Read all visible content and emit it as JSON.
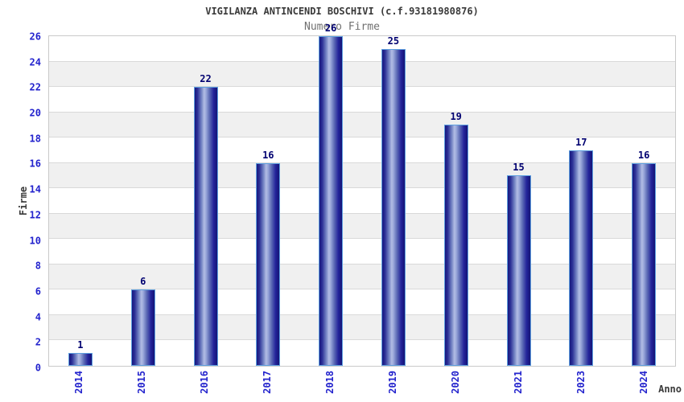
{
  "chart_data": {
    "type": "bar",
    "title": "VIGILANZA ANTINCENDI BOSCHIVI (c.f.93181980876)",
    "subtitle": "Numero Firme",
    "xlabel": "Anno",
    "ylabel": "Firme",
    "categories": [
      "2014",
      "2015",
      "2016",
      "2017",
      "2018",
      "2019",
      "2020",
      "2021",
      "2023",
      "2024"
    ],
    "values": [
      1,
      6,
      22,
      16,
      26,
      25,
      19,
      15,
      17,
      16
    ],
    "ylim": [
      0,
      26
    ],
    "ytick_step": 2,
    "grid": true,
    "band_step": 2,
    "legend_position": "none"
  },
  "colors": {
    "title_text": "#3a3a3a",
    "subtitle_text": "#707070",
    "axis_tick_text": "#2323cd",
    "bar_value_text": "#000070",
    "axis_title_text": "#3a3a3a",
    "band_gray": "#f0f0f0",
    "band_white": "#ffffff",
    "grid_line": "#d9d9d9",
    "plot_border": "#c9c9c9",
    "bar_edge": "#17177e",
    "bar_mid": "#5a68b4",
    "bar_highlight": "#b2bce4",
    "bar_outline": "#5ea0e0"
  }
}
